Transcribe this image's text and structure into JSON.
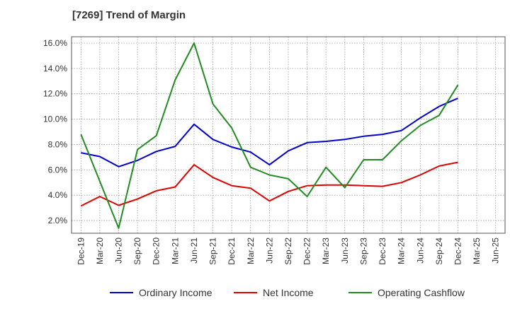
{
  "chart_data": {
    "type": "line",
    "title": "[7269]  Trend of Margin",
    "categories": [
      "Dec-19",
      "Mar-20",
      "Jun-20",
      "Sep-20",
      "Dec-20",
      "Mar-21",
      "Jun-21",
      "Sep-21",
      "Dec-21",
      "Mar-22",
      "Jun-22",
      "Sep-22",
      "Dec-22",
      "Mar-23",
      "Jun-23",
      "Sep-23",
      "Dec-23",
      "Mar-24",
      "Jun-24",
      "Sep-24",
      "Dec-24",
      "Mar-25",
      "Jun-25"
    ],
    "yticks": [
      "2.0%",
      "4.0%",
      "6.0%",
      "8.0%",
      "10.0%",
      "12.0%",
      "14.0%",
      "16.0%"
    ],
    "ylim": [
      1.0,
      16.5
    ],
    "grid": true,
    "legend_position": "bottom",
    "series": [
      {
        "name": "Ordinary Income",
        "color": "#0000cc",
        "values": [
          7.35,
          7.05,
          6.25,
          6.75,
          7.45,
          7.85,
          9.6,
          8.4,
          7.8,
          7.4,
          6.4,
          7.5,
          8.15,
          8.25,
          8.4,
          8.65,
          8.8,
          9.1,
          10.1,
          11.0,
          11.65,
          null,
          null
        ]
      },
      {
        "name": "Net Income",
        "color": "#e00000",
        "values": [
          3.15,
          3.9,
          3.2,
          3.7,
          4.35,
          4.65,
          6.4,
          5.4,
          4.75,
          4.55,
          3.55,
          4.3,
          4.75,
          4.8,
          4.8,
          4.75,
          4.7,
          5.0,
          5.6,
          6.3,
          6.6,
          null,
          null
        ]
      },
      {
        "name": "Operating Cashflow",
        "color": "#228b22",
        "values": [
          8.8,
          5.1,
          1.4,
          7.6,
          8.7,
          13.1,
          16.0,
          11.2,
          9.3,
          6.2,
          5.6,
          5.3,
          3.9,
          6.2,
          4.6,
          6.8,
          6.8,
          8.3,
          9.5,
          10.3,
          12.7,
          null,
          null
        ]
      }
    ]
  }
}
